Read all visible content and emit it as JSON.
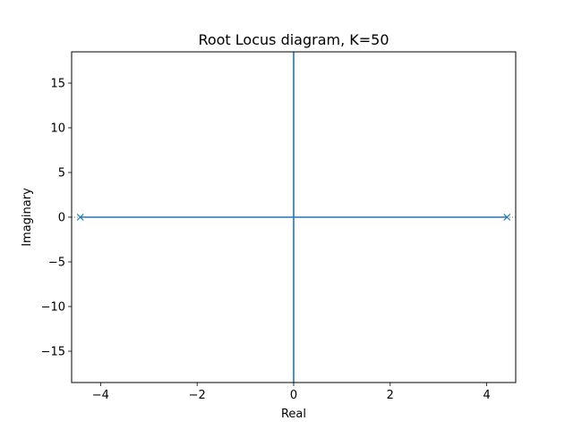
{
  "chart_data": {
    "type": "line",
    "title": "Root Locus diagram, K=50",
    "xlabel": "Real",
    "ylabel": "Imaginary",
    "xlim": [
      -4.6,
      4.6
    ],
    "ylim": [
      -18.5,
      18.5
    ],
    "xticks": [
      -4,
      -2,
      0,
      2,
      4
    ],
    "xtick_labels": [
      "−4",
      "−2",
      "0",
      "2",
      "4"
    ],
    "yticks": [
      -15,
      -10,
      -5,
      0,
      5,
      10,
      15
    ],
    "ytick_labels": [
      "−15",
      "−10",
      "−5",
      "0",
      "5",
      "10",
      "15"
    ],
    "grid": false,
    "series_color": "#1f77b4",
    "locus_branches": [
      {
        "x": [
          -4.42,
          0.0
        ],
        "y": [
          0,
          0
        ]
      },
      {
        "x": [
          4.42,
          0.0
        ],
        "y": [
          0,
          0
        ]
      },
      {
        "x": [
          0.0,
          0.0
        ],
        "y": [
          0,
          18.5
        ]
      },
      {
        "x": [
          0.0,
          0.0
        ],
        "y": [
          0,
          -18.5
        ]
      }
    ],
    "open_loop_poles": [
      {
        "real": -4.42,
        "imag": 0
      },
      {
        "real": 4.42,
        "imag": 0
      }
    ],
    "pole_marker": "x"
  }
}
